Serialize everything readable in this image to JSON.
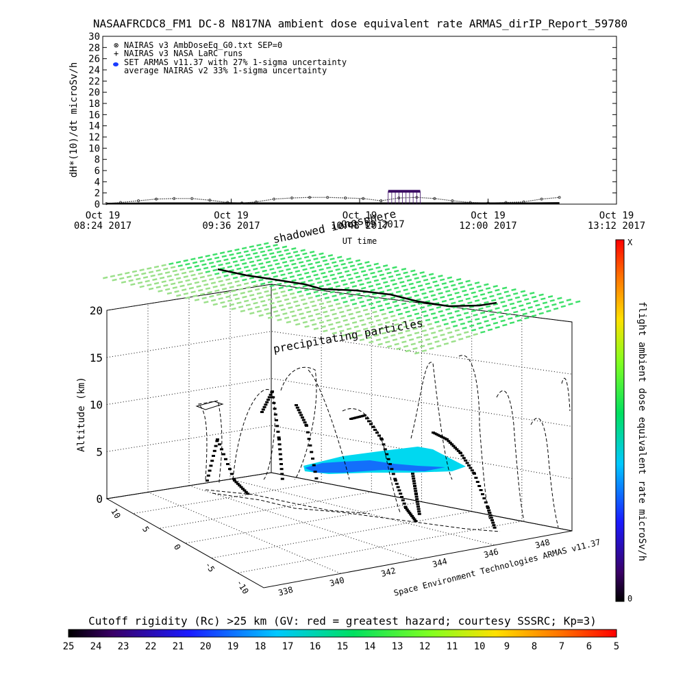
{
  "title": "NASAAFRCDC8_FM1 DC-8   N817NA ambient dose equivalent rate ARMAS_dirIP_Report_59780",
  "colors": {
    "line": "#000000",
    "armas": "#3a0a63",
    "grid_points": "#3ee06a",
    "grid_points_faint": "#9be08a",
    "cyan_region": "#00d8f0",
    "blue_region": "#1a4cff",
    "background": "#ffffff"
  },
  "chart_data": [
    {
      "type": "line",
      "ylabel": "dH*(10)/dt microSv/h",
      "xlabel": "UT time",
      "ylim": [
        0,
        30
      ],
      "yticks": [
        "0",
        "2",
        "4",
        "6",
        "8",
        "10",
        "12",
        "14",
        "16",
        "18",
        "20",
        "22",
        "24",
        "26",
        "28",
        "30"
      ],
      "xticks": [
        {
          "top": "Oct 19",
          "bottom": "08:24 2017"
        },
        {
          "top": "Oct 19",
          "bottom": "09:36 2017"
        },
        {
          "top": "Oct 19",
          "bottom": "10:48 2017"
        },
        {
          "top": "Oct 19",
          "bottom": "12:00 2017"
        },
        {
          "top": "Oct 19",
          "bottom": "13:12 2017"
        }
      ],
      "x_minutes": [
        0,
        72,
        144,
        216,
        288
      ],
      "legend": [
        {
          "marker": "⊗",
          "label": "NAIRAS v3 AmbDoseEq_G0.txt SEP=0"
        },
        {
          "marker": "+",
          "label": "NAIRAS v3 NASA LaRC runs"
        },
        {
          "marker": "●",
          "label": "SET ARMAS v11.37 with 27% 1-sigma uncertainty"
        },
        {
          "marker": "",
          "label": "average NAIRAS v2 33% 1-sigma uncertainty"
        }
      ],
      "series": [
        {
          "name": "NAIRAS v3 AmbDoseEq_G0.txt SEP=0",
          "x": [
            2,
            10,
            20,
            30,
            40,
            50,
            60,
            70,
            78,
            86,
            96,
            106,
            116,
            126,
            136,
            146,
            156,
            166,
            176,
            186,
            196,
            206,
            216,
            226,
            236,
            246,
            256
          ],
          "y": [
            0.1,
            0.3,
            0.6,
            0.9,
            1.0,
            1.0,
            0.7,
            0.3,
            0.2,
            0.4,
            0.9,
            1.1,
            1.2,
            1.2,
            1.1,
            1.0,
            0.6,
            1.1,
            1.2,
            1.0,
            0.6,
            0.3,
            0.2,
            0.3,
            0.4,
            0.9,
            1.2
          ]
        },
        {
          "name": "NAIRAS v3 NASA LaRC runs",
          "x": [
            2,
            30,
            60,
            90,
            120,
            150,
            180,
            210,
            240,
            256
          ],
          "y": [
            0.1,
            0.15,
            0.15,
            0.15,
            0.15,
            0.15,
            0.15,
            0.15,
            0.15,
            0.2
          ]
        },
        {
          "name": "SET ARMAS v11.37 with 27% 1-sigma uncertainty",
          "x": [
            160,
            162,
            164,
            166,
            168,
            170,
            172,
            174,
            176,
            178
          ],
          "y": [
            2.3,
            2.3,
            2.3,
            2.3,
            2.3,
            2.3,
            2.3,
            2.3,
            2.3,
            2.3
          ]
        }
      ]
    },
    {
      "type": "scatter",
      "zlabel": "Altitude (km)",
      "zticks": [
        "0",
        "5",
        "10",
        "15",
        "20"
      ],
      "lon_ticks": [
        "338",
        "340",
        "342",
        "344",
        "346",
        "348"
      ],
      "lat_ticks": [
        "10",
        "5",
        "0",
        "-5",
        "-10"
      ],
      "annotations": [
        "shadowed ionosphere",
        "precipitating particles",
        "Space Environment Technologies ARMAS v11.37"
      ],
      "overlay_text": "Oct 19 2017"
    },
    {
      "type": "heatmap",
      "colorbar_label": "flight ambient dose equivalent rate microSv/h",
      "colorbar_max": "X",
      "colorbar_min": "0"
    }
  ],
  "bottom_colorbar": {
    "title": "Cutoff rigidity (Rc) >25 km (GV: red = greatest hazard; courtesy SSSRC; Kp=3)",
    "ticks": [
      "25",
      "24",
      "23",
      "22",
      "21",
      "20",
      "19",
      "18",
      "17",
      "16",
      "15",
      "14",
      "13",
      "12",
      "11",
      "10",
      "9",
      "8",
      "7",
      "6",
      "5"
    ]
  }
}
